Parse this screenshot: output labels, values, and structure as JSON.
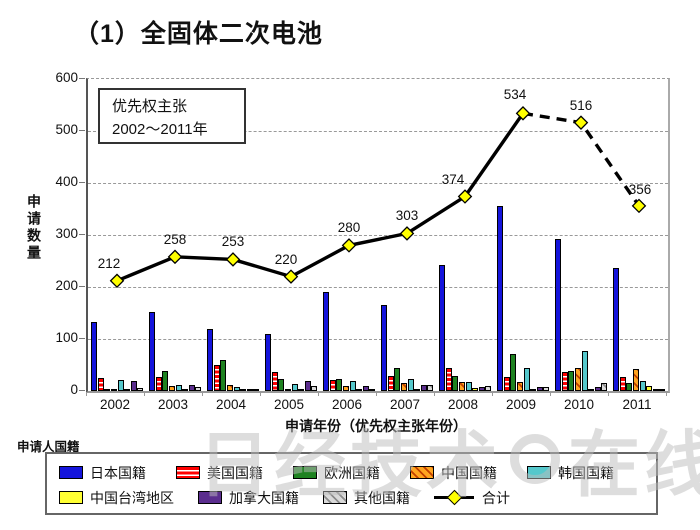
{
  "annotation": {
    "line1": "优先权主张",
    "line2": "2002～2011年"
  },
  "legend": {
    "title": "申请人国籍"
  },
  "watermark": {
    "left": "日经技术",
    "right": "在线!"
  },
  "chart_data": {
    "type": "bar",
    "title": "（1）全固体二次电池",
    "xlabel": "申请年份（优先权主张年份）",
    "ylabel": "申请数量",
    "ylim": [
      0,
      600
    ],
    "yticks": [
      0,
      100,
      200,
      300,
      400,
      500,
      600
    ],
    "grid": "dashed horizontal",
    "legend_position": "bottom",
    "categories": [
      "2002",
      "2003",
      "2004",
      "2005",
      "2006",
      "2007",
      "2008",
      "2009",
      "2010",
      "2011"
    ],
    "series": [
      {
        "name": "日本国籍",
        "pattern": "solid",
        "color": "#1414DC",
        "values": [
          133,
          152,
          120,
          110,
          190,
          165,
          243,
          355,
          293,
          237
        ]
      },
      {
        "name": "美国国籍",
        "pattern": "hstripe",
        "color": "#FF0000",
        "color2": "#FFFFFF",
        "values": [
          25,
          26,
          50,
          36,
          22,
          28,
          45,
          26,
          37,
          27
        ]
      },
      {
        "name": "欧洲国籍",
        "pattern": "solid",
        "color": "#1E8220",
        "values": [
          4,
          39,
          60,
          24,
          24,
          45,
          28,
          72,
          39,
          15
        ]
      },
      {
        "name": "中国国籍",
        "pattern": "diag",
        "color": "#FFA520",
        "color2": "#C04000",
        "values": [
          0,
          9,
          11,
          4,
          10,
          15,
          17,
          18,
          44,
          42
        ]
      },
      {
        "name": "韩国国籍",
        "pattern": "solid",
        "color": "#55C8CC",
        "values": [
          22,
          11,
          8,
          14,
          20,
          24,
          18,
          45,
          76,
          20
        ]
      },
      {
        "name": "中国台湾地区",
        "pattern": "solid",
        "color": "#FFFF33",
        "values": [
          3,
          1,
          0,
          2,
          1,
          2,
          5,
          3,
          3,
          9
        ]
      },
      {
        "name": "加拿大国籍",
        "pattern": "solid",
        "color": "#5B2D8E",
        "values": [
          20,
          12,
          4,
          20,
          10,
          12,
          8,
          7,
          8,
          3
        ]
      },
      {
        "name": "其他国籍",
        "pattern": "diag",
        "color": "#D9D9D9",
        "color2": "#8C8C8C",
        "values": [
          5,
          8,
          0,
          10,
          3,
          12,
          10,
          8,
          16,
          3
        ]
      }
    ],
    "line_series": {
      "name": "合计",
      "color": "#000000",
      "marker_fill": "#FFFF00",
      "values": [
        212,
        258,
        253,
        220,
        280,
        303,
        374,
        534,
        516,
        356
      ],
      "dashed_from_index": 7
    }
  }
}
